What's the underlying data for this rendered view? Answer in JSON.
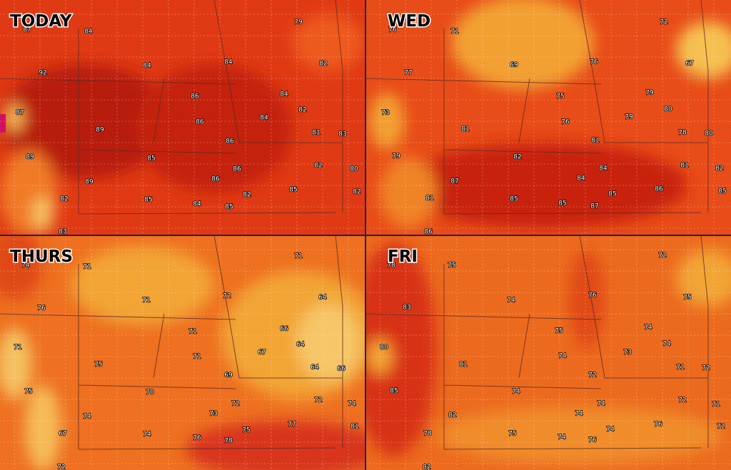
{
  "panels": [
    {
      "title": "TODAY",
      "temperatures": [
        87,
        84,
        79,
        92,
        84,
        84,
        82,
        86,
        84,
        82,
        87,
        89,
        86,
        84,
        81,
        83,
        86,
        89,
        85,
        82,
        80,
        86,
        89,
        86,
        82,
        82,
        85,
        82,
        85,
        84,
        85,
        83
      ]
    },
    {
      "title": "WED",
      "temperatures": [
        76,
        71,
        72,
        69,
        76,
        67,
        77,
        75,
        79,
        80,
        73,
        76,
        79,
        81,
        78,
        80,
        81,
        79,
        82,
        81,
        82,
        84,
        87,
        84,
        86,
        85,
        81,
        85,
        85,
        85,
        87,
        86
      ]
    },
    {
      "title": "THURS",
      "temperatures": [
        74,
        71,
        71,
        76,
        71,
        72,
        64,
        71,
        66,
        67,
        71,
        64,
        64,
        71,
        75,
        69,
        66,
        70,
        75,
        72,
        72,
        74,
        74,
        73,
        77,
        81,
        67,
        75,
        74,
        76,
        78,
        72
      ]
    },
    {
      "title": "FRI",
      "temperatures": [
        78,
        75,
        72,
        74,
        76,
        75,
        83,
        75,
        74,
        74,
        73,
        74,
        80,
        81,
        71,
        72,
        72,
        85,
        74,
        72,
        71,
        74,
        74,
        82,
        76,
        72,
        78,
        75,
        74,
        74,
        76,
        82
      ]
    }
  ]
}
